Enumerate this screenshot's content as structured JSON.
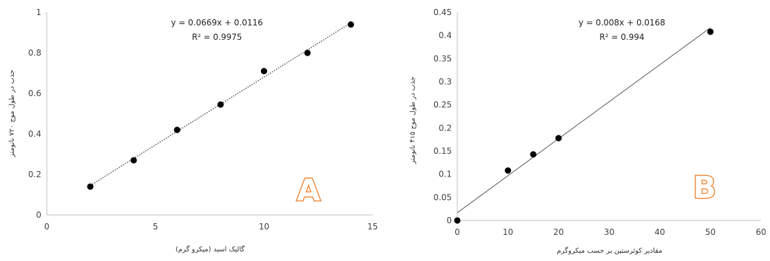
{
  "chart_data": [
    {
      "type": "scatter",
      "panel_label": "A",
      "xlabel": "گالیک اسید (میکرو گرم)",
      "ylabel": "جذب در طول موج ۷۲۰ نانومتر",
      "xlim": [
        0,
        15
      ],
      "ylim": [
        0,
        1
      ],
      "xticks": [
        "0",
        "5",
        "10",
        "15"
      ],
      "yticks": [
        "0",
        "0.2",
        "0.4",
        "0.6",
        "0.8",
        "1"
      ],
      "grid": false,
      "trendline": {
        "style": "dotted",
        "slope": 0.0669,
        "intercept": 0.0116
      },
      "equation": "y = 0.0669x + 0.0116",
      "r_squared": "R² = 0.9975",
      "series": [
        {
          "x": [
            2,
            4,
            6,
            8,
            10,
            12,
            14
          ],
          "y": [
            0.14,
            0.27,
            0.42,
            0.545,
            0.71,
            0.8,
            0.94
          ]
        }
      ],
      "marker_color": "#000000"
    },
    {
      "type": "scatter",
      "panel_label": "B",
      "xlabel": "مقادیر کوئرستین بر حسب میکروگرم",
      "ylabel": "جذب در طول موج ۴۱۵ نانومتر",
      "xlim": [
        0,
        60
      ],
      "ylim": [
        0,
        0.45
      ],
      "xticks": [
        "0",
        "10",
        "20",
        "30",
        "40",
        "50",
        "60"
      ],
      "yticks": [
        "0",
        "0.05",
        "0.1",
        "0.15",
        "0.2",
        "0.25",
        "0.3",
        "0.35",
        "0.4",
        "0.45"
      ],
      "grid": false,
      "trendline": {
        "style": "solid",
        "slope": 0.008,
        "intercept": 0.0168
      },
      "equation": "y = 0.008x + 0.0168",
      "r_squared": "R² = 0.994",
      "series": [
        {
          "x": [
            0,
            10,
            15,
            20,
            50
          ],
          "y": [
            0,
            0.108,
            0.143,
            0.178,
            0.408
          ]
        }
      ],
      "marker_color": "#000000"
    }
  ]
}
